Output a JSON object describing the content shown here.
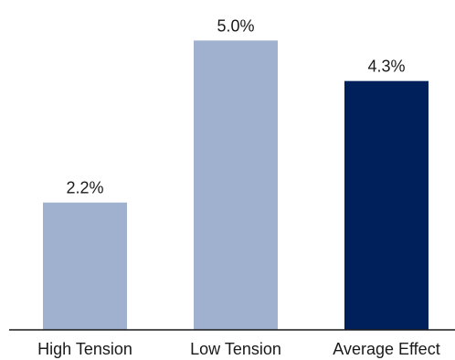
{
  "chart_data": {
    "type": "bar",
    "categories": [
      "High Tension",
      "Low Tension",
      "Average Effect"
    ],
    "values": [
      2.2,
      5.0,
      4.3
    ],
    "value_labels": [
      "2.2%",
      "5.0%",
      "4.3%"
    ],
    "unit": "%",
    "ylim": [
      0,
      5.7
    ],
    "grid": false,
    "legend": "none",
    "colors": {
      "bars": [
        "#a0b1cf",
        "#a0b1cf",
        "#00205b"
      ],
      "axis": "#1a1a1a"
    }
  }
}
